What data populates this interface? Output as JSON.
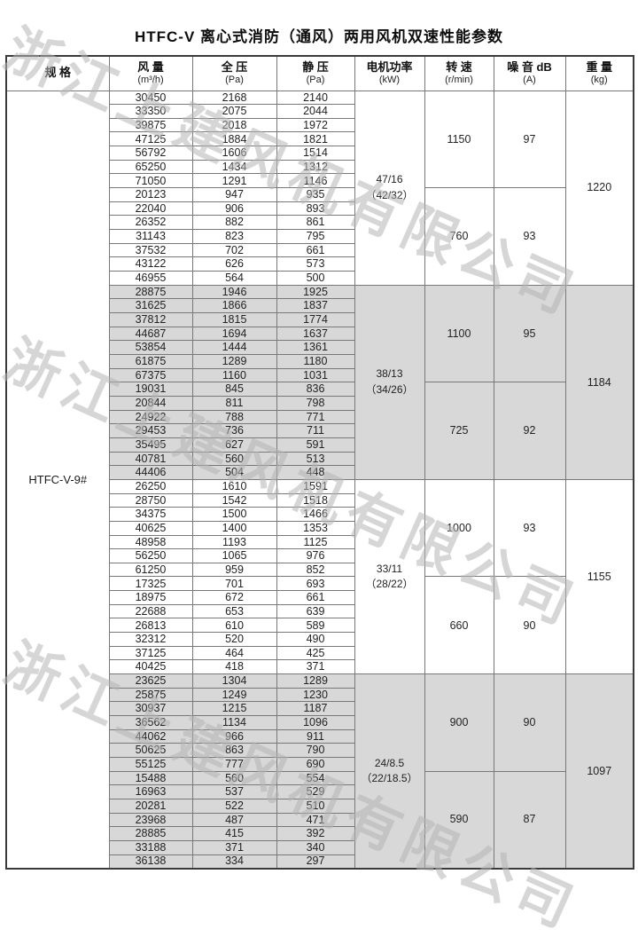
{
  "page": {
    "title": "HTFC-V 离心式消防（通风）两用风机双速性能参数"
  },
  "watermark": {
    "text": "浙江上建风机有限公司",
    "color": "#b5b5b5"
  },
  "table": {
    "shaded_bg": "#d8d8d8",
    "headers": [
      {
        "line1": "规 格",
        "line2": ""
      },
      {
        "line1": "风 量",
        "line2": "(m³/h)"
      },
      {
        "line1": "全 压",
        "line2": "(Pa)"
      },
      {
        "line1": "静 压",
        "line2": "(Pa)"
      },
      {
        "line1": "电机功率",
        "line2": "(kW)"
      },
      {
        "line1": "转 速",
        "line2": "(r/min)"
      },
      {
        "line1": "噪 音 dB",
        "line2": "(A)"
      },
      {
        "line1": "重 量",
        "line2": "(kg)"
      }
    ],
    "spec": "HTFC-V-9#",
    "groups": [
      {
        "shaded": false,
        "power_line1": "47/16",
        "power_line2": "（42/32）",
        "weight": "1220",
        "sections": [
          {
            "speed": "1150",
            "noise": "97",
            "rows": [
              [
                "30450",
                "2168",
                "2140"
              ],
              [
                "33350",
                "2075",
                "2044"
              ],
              [
                "39875",
                "2018",
                "1972"
              ],
              [
                "47125",
                "1884",
                "1821"
              ],
              [
                "56792",
                "1606",
                "1514"
              ],
              [
                "65250",
                "1434",
                "1312"
              ],
              [
                "71050",
                "1291",
                "1146"
              ]
            ]
          },
          {
            "speed": "760",
            "noise": "93",
            "rows": [
              [
                "20123",
                "947",
                "935"
              ],
              [
                "22040",
                "906",
                "893"
              ],
              [
                "26352",
                "882",
                "861"
              ],
              [
                "31143",
                "823",
                "795"
              ],
              [
                "37532",
                "702",
                "661"
              ],
              [
                "43122",
                "626",
                "573"
              ],
              [
                "46955",
                "564",
                "500"
              ]
            ]
          }
        ]
      },
      {
        "shaded": true,
        "power_line1": "38/13",
        "power_line2": "（34/26）",
        "weight": "1184",
        "sections": [
          {
            "speed": "1100",
            "noise": "95",
            "rows": [
              [
                "28875",
                "1946",
                "1925"
              ],
              [
                "31625",
                "1866",
                "1837"
              ],
              [
                "37812",
                "1815",
                "1774"
              ],
              [
                "44687",
                "1694",
                "1637"
              ],
              [
                "53854",
                "1444",
                "1361"
              ],
              [
                "61875",
                "1289",
                "1180"
              ],
              [
                "67375",
                "1160",
                "1031"
              ]
            ]
          },
          {
            "speed": "725",
            "noise": "92",
            "rows": [
              [
                "19031",
                "845",
                "836"
              ],
              [
                "20844",
                "811",
                "798"
              ],
              [
                "24922",
                "788",
                "771"
              ],
              [
                "29453",
                "736",
                "711"
              ],
              [
                "35495",
                "627",
                "591"
              ],
              [
                "40781",
                "560",
                "513"
              ],
              [
                "44406",
                "504",
                "448"
              ]
            ]
          }
        ]
      },
      {
        "shaded": false,
        "power_line1": "33/11",
        "power_line2": "（28/22）",
        "weight": "1155",
        "sections": [
          {
            "speed": "1000",
            "noise": "93",
            "rows": [
              [
                "26250",
                "1610",
                "1591"
              ],
              [
                "28750",
                "1542",
                "1518"
              ],
              [
                "34375",
                "1500",
                "1466"
              ],
              [
                "40625",
                "1400",
                "1353"
              ],
              [
                "48958",
                "1193",
                "1125"
              ],
              [
                "56250",
                "1065",
                "976"
              ],
              [
                "61250",
                "959",
                "852"
              ]
            ]
          },
          {
            "speed": "660",
            "noise": "90",
            "rows": [
              [
                "17325",
                "701",
                "693"
              ],
              [
                "18975",
                "672",
                "661"
              ],
              [
                "22688",
                "653",
                "639"
              ],
              [
                "26813",
                "610",
                "589"
              ],
              [
                "32312",
                "520",
                "490"
              ],
              [
                "37125",
                "464",
                "425"
              ],
              [
                "40425",
                "418",
                "371"
              ]
            ]
          }
        ]
      },
      {
        "shaded": true,
        "power_line1": "24/8.5",
        "power_line2": "（22/18.5）",
        "weight": "1097",
        "sections": [
          {
            "speed": "900",
            "noise": "90",
            "rows": [
              [
                "23625",
                "1304",
                "1289"
              ],
              [
                "25875",
                "1249",
                "1230"
              ],
              [
                "30937",
                "1215",
                "1187"
              ],
              [
                "36562",
                "1134",
                "1096"
              ],
              [
                "44062",
                "966",
                "911"
              ],
              [
                "50625",
                "863",
                "790"
              ],
              [
                "55125",
                "777",
                "690"
              ]
            ]
          },
          {
            "speed": "590",
            "noise": "87",
            "rows": [
              [
                "15488",
                "560",
                "554"
              ],
              [
                "16963",
                "537",
                "529"
              ],
              [
                "20281",
                "522",
                "510"
              ],
              [
                "23968",
                "487",
                "471"
              ],
              [
                "28885",
                "415",
                "392"
              ],
              [
                "33188",
                "371",
                "340"
              ],
              [
                "36138",
                "334",
                "297"
              ]
            ]
          }
        ]
      }
    ]
  }
}
